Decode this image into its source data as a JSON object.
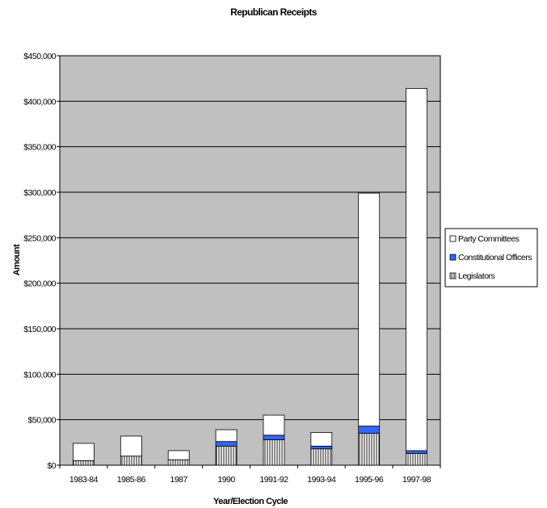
{
  "chart_data": {
    "type": "bar",
    "stacked": true,
    "title": "Republican Receipts",
    "xlabel": "Year/Election Cycle",
    "ylabel": "Amount",
    "categories": [
      "1983-84",
      "1985-86",
      "1987",
      "1990",
      "1991-92",
      "1993-94",
      "1995-96",
      "1997-98"
    ],
    "ylim": [
      0,
      450000
    ],
    "yticks": [
      0,
      50000,
      100000,
      150000,
      200000,
      250000,
      300000,
      350000,
      400000,
      450000
    ],
    "ytick_labels": [
      "$0",
      "$50,000",
      "$100,000",
      "$150,000",
      "$200,000",
      "$250,000",
      "$300,000",
      "$350,000",
      "$400,000",
      "$450,000"
    ],
    "grid": true,
    "legend_position": "right",
    "series": [
      {
        "name": "Legislators",
        "values": [
          5000,
          10000,
          6000,
          21000,
          28000,
          18000,
          35000,
          13000
        ],
        "color": "#ffffff",
        "pattern": "vertical-lines"
      },
      {
        "name": "Constitutional Officers",
        "values": [
          0,
          0,
          0,
          5000,
          5000,
          3000,
          8000,
          3000
        ],
        "color": "#3366ff"
      },
      {
        "name": "Party Committees",
        "values": [
          19000,
          22000,
          10000,
          13000,
          22000,
          15000,
          256000,
          398000
        ],
        "color": "#ffffff"
      }
    ],
    "legend_order": [
      "Party Committees",
      "Constitutional Officers",
      "Legislators"
    ],
    "plot_background": "#c0c0c0"
  }
}
